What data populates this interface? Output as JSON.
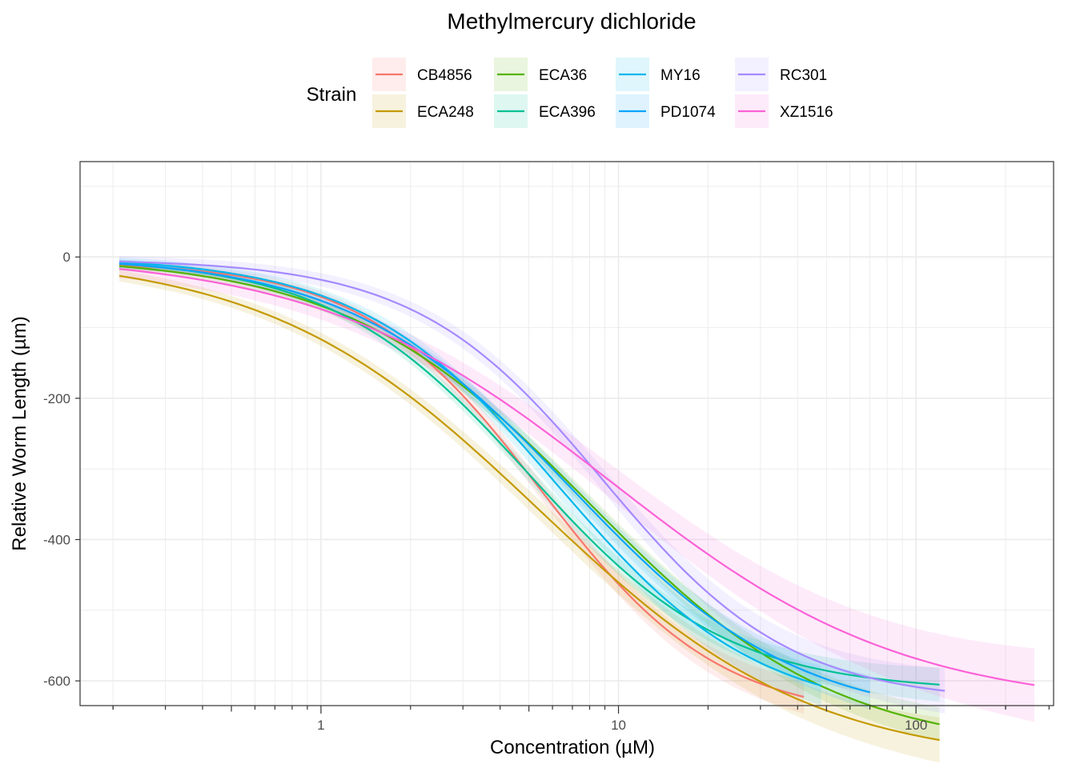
{
  "chart_data": {
    "type": "line",
    "title": "Methylmercury dichloride",
    "xlabel": "Concentration (µM)",
    "ylabel": "Relative Worm Length (µm)",
    "xscale": "log10",
    "xlim": [
      0.155,
      290
    ],
    "ylim": [
      -635,
      135
    ],
    "grid": true,
    "x_ticks": [
      {
        "value": 1,
        "label": "1"
      },
      {
        "value": 10,
        "label": "10"
      },
      {
        "value": 100,
        "label": "100"
      }
    ],
    "y_ticks": [
      {
        "value": 0,
        "label": "0"
      },
      {
        "value": -200,
        "label": "-200"
      },
      {
        "value": -400,
        "label": "-400"
      },
      {
        "value": -600,
        "label": "-600"
      }
    ],
    "legend": {
      "title": "Strain",
      "position": "top",
      "columns": 4
    },
    "series": [
      {
        "name": "CB4856",
        "color": "#F8766D",
        "x_min": 0.21,
        "x_max": 42,
        "top": -6,
        "bottom": -655,
        "ec50": 5.5,
        "hill": 1.45,
        "ci": 12
      },
      {
        "name": "ECA248",
        "color": "#C49A00",
        "x_min": 0.21,
        "x_max": 120,
        "top": 5,
        "bottom": -720,
        "ec50": 5.4,
        "hill": 0.95,
        "ci": 16
      },
      {
        "name": "ECA36",
        "color": "#53B400",
        "x_min": 0.21,
        "x_max": 120,
        "top": 2,
        "bottom": -700,
        "ec50": 8.0,
        "hill": 1.05,
        "ci": 12
      },
      {
        "name": "ECA396",
        "color": "#00C094",
        "x_min": 0.21,
        "x_max": 120,
        "top": 0,
        "bottom": -615,
        "ec50": 5.0,
        "hill": 1.3,
        "ci": 12
      },
      {
        "name": "MY16",
        "color": "#00B6EB",
        "x_min": 0.21,
        "x_max": 48,
        "top": 0,
        "bottom": -650,
        "ec50": 6.3,
        "hill": 1.3,
        "ci": 14
      },
      {
        "name": "PD1074",
        "color": "#06A4FF",
        "x_min": 0.21,
        "x_max": 70,
        "top": 2,
        "bottom": -660,
        "ec50": 7.0,
        "hill": 1.15,
        "ci": 12
      },
      {
        "name": "RC301",
        "color": "#A58AFF",
        "x_min": 0.21,
        "x_max": 125,
        "top": -3,
        "bottom": -630,
        "ec50": 8.9,
        "hill": 1.38,
        "ci": 16
      },
      {
        "name": "XZ1516",
        "color": "#FB61D7",
        "x_min": 0.21,
        "x_max": 250,
        "top": 5,
        "bottom": -640,
        "ec50": 9.4,
        "hill": 0.88,
        "ci": 26
      }
    ]
  }
}
